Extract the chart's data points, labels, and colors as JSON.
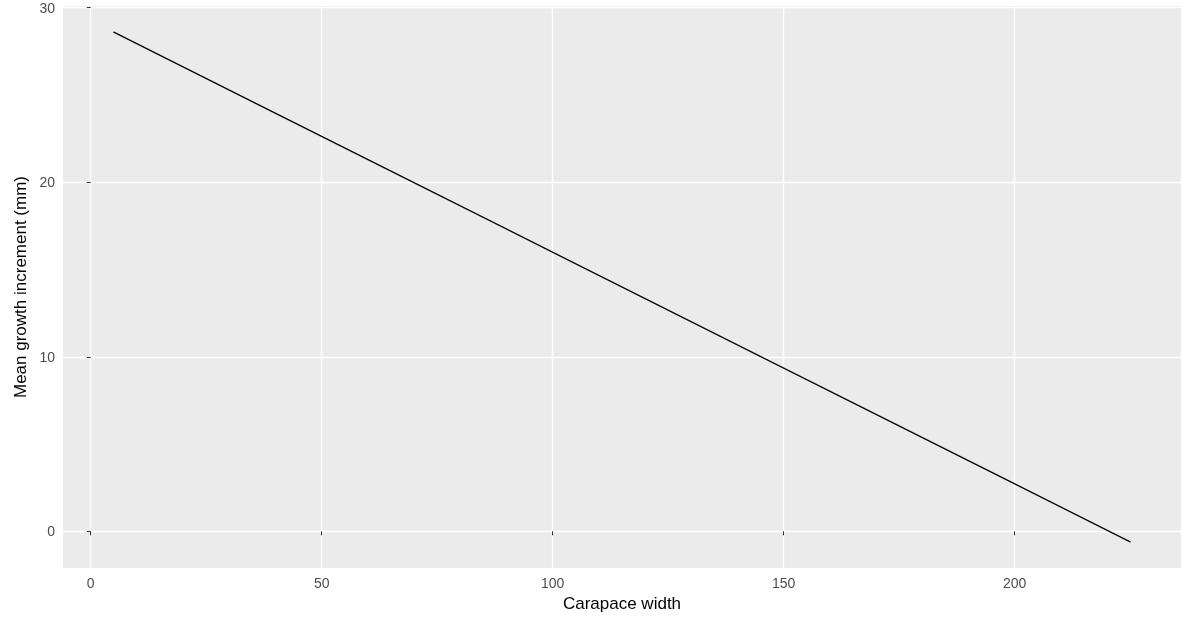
{
  "chart_data": {
    "type": "line",
    "xlabel": "Carapace width",
    "ylabel": "Mean growth increment (mm)",
    "x": [
      5,
      225
    ],
    "series": [
      {
        "color": "#000000",
        "values": [
          28.6,
          -0.6
        ]
      }
    ],
    "xlim": [
      -6,
      236
    ],
    "xticks": [
      0,
      50,
      100,
      150,
      200
    ],
    "ylim": [
      -2.1,
      30.1
    ],
    "yticks": [
      0,
      10,
      20,
      30
    ],
    "grid": true,
    "marker": "none",
    "line_style": "solid"
  }
}
